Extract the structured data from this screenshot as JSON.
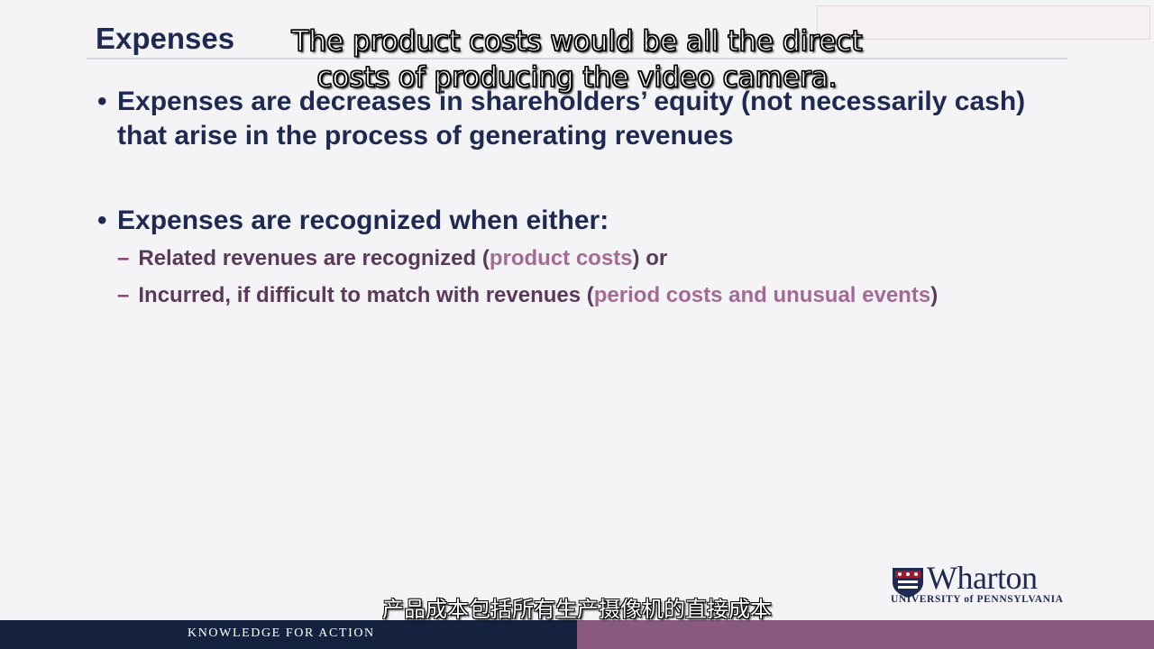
{
  "slide": {
    "title": "Expenses",
    "bullets": [
      {
        "marker": "•",
        "text": "Expenses are decreases in shareholders’ equity (not necessarily cash) that arise in the process of generating revenues"
      },
      {
        "marker": "•",
        "text": "Expenses are recognized when either:"
      }
    ],
    "sub_items": [
      {
        "dash": "–",
        "pre": "Related revenues are recognized (",
        "highlight": "product costs",
        "post": ") or"
      },
      {
        "dash": "–",
        "pre": "Incurred, if difficult to match with revenues (",
        "highlight": "period costs and unusual events",
        "post": ")"
      }
    ]
  },
  "logo": {
    "name": "Wharton",
    "university": "UNIVERSITY of PENNSYLVANIA"
  },
  "footer": {
    "tagline": "KNOWLEDGE FOR ACTION"
  },
  "captions": {
    "english": "The product costs would be all the direct costs of producing the video camera.",
    "chinese": "产品成本包括所有生产摄像机的直接成本"
  },
  "colors": {
    "title": "#1f2a52",
    "footer_left": "#14213f",
    "footer_right": "#8a5a7e",
    "highlight": "#a46a96"
  }
}
